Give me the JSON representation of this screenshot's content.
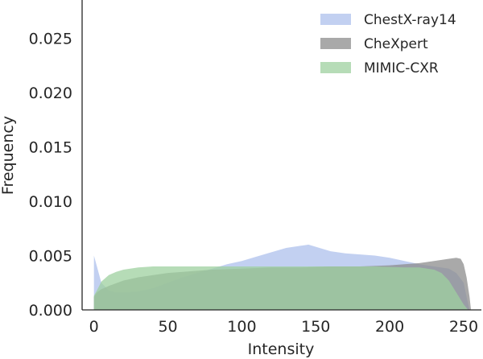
{
  "chart_data": {
    "type": "area",
    "xlabel": "Intensity",
    "ylabel": "Frequency",
    "xlim": [
      -8,
      262
    ],
    "ylim": [
      0,
      0.0285
    ],
    "x_ticks": [
      0,
      50,
      100,
      150,
      200,
      250
    ],
    "x_tick_labels": [
      "0",
      "50",
      "100",
      "150",
      "200",
      "250"
    ],
    "y_ticks": [
      0.0,
      0.005,
      0.01,
      0.015,
      0.02,
      0.025
    ],
    "y_tick_labels": [
      "0.000",
      "0.005",
      "0.010",
      "0.015",
      "0.020",
      "0.025"
    ],
    "grid": false,
    "legend_position": "top-right",
    "series": [
      {
        "name": "ChestX-ray14",
        "color": "#aec0ec",
        "opacity": 0.75,
        "x": [
          0,
          2,
          5,
          10,
          15,
          20,
          30,
          40,
          50,
          60,
          70,
          80,
          90,
          100,
          110,
          120,
          130,
          140,
          145,
          150,
          160,
          170,
          180,
          190,
          200,
          210,
          220,
          230,
          240,
          245,
          250,
          252,
          254
        ],
        "y": [
          0.005,
          0.004,
          0.0025,
          0.0018,
          0.0016,
          0.0016,
          0.0017,
          0.002,
          0.0025,
          0.003,
          0.0034,
          0.0038,
          0.0042,
          0.0045,
          0.0049,
          0.0053,
          0.0057,
          0.0059,
          0.006,
          0.0058,
          0.0054,
          0.0052,
          0.0051,
          0.005,
          0.0048,
          0.0045,
          0.0042,
          0.004,
          0.0038,
          0.0034,
          0.0025,
          0.0012,
          0.0
        ]
      },
      {
        "name": "CheXpert",
        "color": "#8c8c8c",
        "opacity": 0.75,
        "x": [
          0,
          2,
          5,
          10,
          20,
          30,
          40,
          50,
          60,
          80,
          100,
          120,
          140,
          160,
          180,
          200,
          210,
          220,
          230,
          240,
          245,
          248,
          250,
          252,
          254,
          255
        ],
        "y": [
          0.0012,
          0.0016,
          0.0019,
          0.0022,
          0.0027,
          0.003,
          0.0032,
          0.0034,
          0.0035,
          0.0037,
          0.0038,
          0.0039,
          0.0039,
          0.004,
          0.004,
          0.0041,
          0.0042,
          0.0043,
          0.0045,
          0.0047,
          0.0048,
          0.0047,
          0.0042,
          0.003,
          0.0012,
          0.0
        ]
      },
      {
        "name": "MIMIC-CXR",
        "color": "#9ed09f",
        "opacity": 0.75,
        "x": [
          0,
          2,
          5,
          10,
          15,
          20,
          30,
          40,
          50,
          70,
          100,
          130,
          160,
          190,
          210,
          220,
          230,
          235,
          240,
          245,
          250,
          253
        ],
        "y": [
          0.0013,
          0.0018,
          0.0026,
          0.0032,
          0.0035,
          0.0037,
          0.0039,
          0.004,
          0.004,
          0.004,
          0.004,
          0.004,
          0.004,
          0.004,
          0.0039,
          0.0039,
          0.0037,
          0.0034,
          0.0027,
          0.0016,
          0.0005,
          0.0
        ]
      }
    ]
  }
}
